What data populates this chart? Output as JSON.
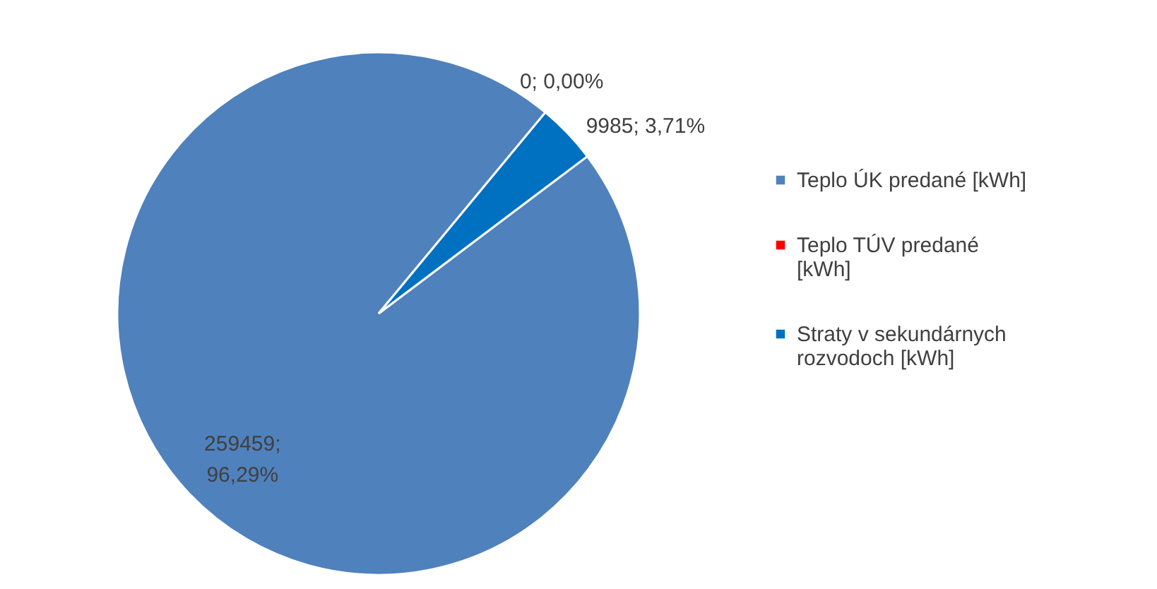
{
  "chart_data": {
    "type": "pie",
    "categories": [
      "Teplo ÚK predané [kWh]",
      "Teplo TÚV predané [kWh]",
      "Straty v sekundárnych rozvodoch [kWh]"
    ],
    "values": [
      259459,
      0,
      9985
    ],
    "colors": [
      "#4f81bd",
      "#ff0000",
      "#0070c0"
    ],
    "value_labels": [
      "259459; 96,29%",
      "0; 0,00%",
      "9985; 3,71%"
    ],
    "legend": "right"
  }
}
